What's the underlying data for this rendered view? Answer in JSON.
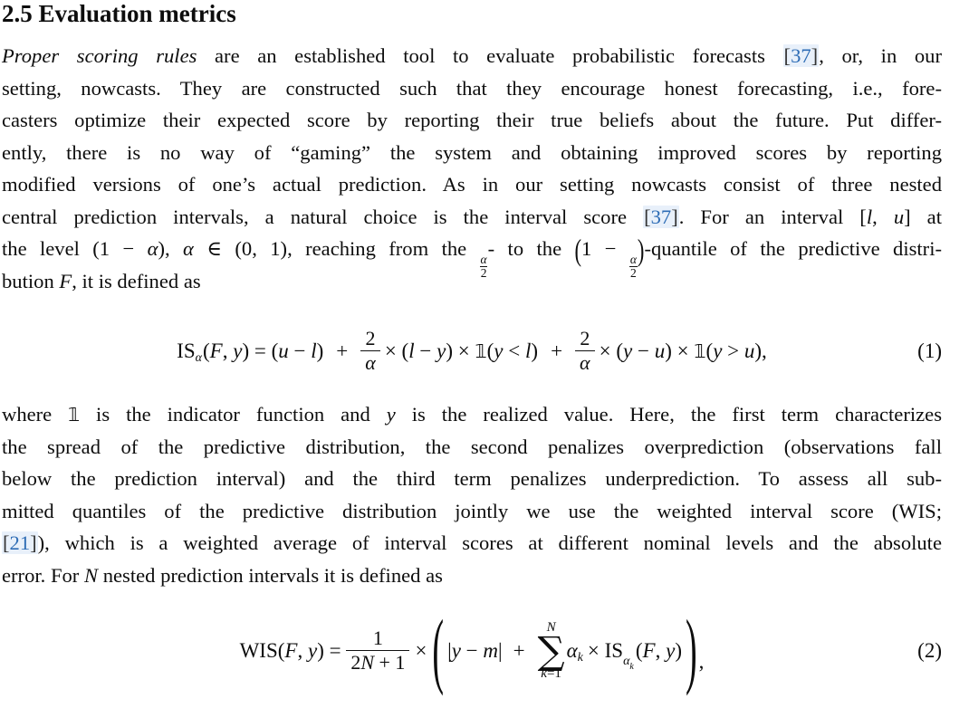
{
  "colors": {
    "body_text": "#0d0d0d",
    "citation_text": "#2d6cb5",
    "citation_background": "#e8f0fa"
  },
  "heading": {
    "title": "2.5 Evaluation metrics"
  },
  "paragraph_1": {
    "lines": [
      [
        {
          "i": "Proper scoring rules"
        },
        " are an established tool to evaluate probabilistic forecasts ",
        {
          "c": "[37]"
        },
        ", or, in our"
      ],
      [
        "setting, nowcasts. They are constructed such that they encourage honest forecasting, i.e., fore-"
      ],
      [
        "casters optimize their expected score by reporting their true beliefs about the future. Put differ-"
      ],
      [
        "ently, there is no way of “gaming” the system and obtaining improved scores by reporting"
      ],
      [
        "modified versions of one’s actual prediction. As in our setting nowcasts consist of three nested"
      ],
      [
        "central prediction intervals, a natural choice is the interval score ",
        {
          "c": "[37]"
        },
        ". For an interval [",
        {
          "i": "l"
        },
        ", ",
        {
          "i": "u"
        },
        "] at"
      ],
      [
        "the level (1 − ",
        {
          "i": "α"
        },
        "), ",
        {
          "i": "α"
        },
        " ∈ (0, 1), reaching from the ",
        {
          "f": [
            "α",
            "2"
          ]
        },
        "- to the ",
        {
          "tp": "("
        },
        "1 − ",
        {
          "f": [
            "α",
            "2"
          ]
        },
        {
          "tp": ")"
        },
        "-quantile of the predictive distri-"
      ],
      [
        "bution ",
        {
          "i": "F"
        },
        ", it is defined as"
      ]
    ]
  },
  "equation_1": {
    "number": "(1)",
    "tokens": [
      {
        "t": "IS"
      },
      {
        "sub": "α"
      },
      {
        "t": "("
      },
      {
        "v": "F"
      },
      {
        "t": ", "
      },
      {
        "v": "y"
      },
      {
        "t": ") = ("
      },
      {
        "v": "u"
      },
      {
        "t": " − "
      },
      {
        "v": "l"
      },
      {
        "t": ")"
      },
      {
        "sp": 14
      },
      {
        "t": "+"
      },
      {
        "sp": 14
      },
      {
        "f": [
          "2",
          "α"
        ]
      },
      {
        "sp": 5
      },
      {
        "t": "× ("
      },
      {
        "v": "l"
      },
      {
        "t": " − "
      },
      {
        "v": "y"
      },
      {
        "t": ") × "
      },
      {
        "dbl": "𝟙"
      },
      {
        "t": "("
      },
      {
        "v": "y"
      },
      {
        "t": " < "
      },
      {
        "v": "l"
      },
      {
        "t": ")"
      },
      {
        "sp": 14
      },
      {
        "t": "+"
      },
      {
        "sp": 14
      },
      {
        "f": [
          "2",
          "α"
        ]
      },
      {
        "sp": 5
      },
      {
        "t": "× ("
      },
      {
        "v": "y"
      },
      {
        "t": " − "
      },
      {
        "v": "u"
      },
      {
        "t": ") × "
      },
      {
        "dbl": "𝟙"
      },
      {
        "t": "("
      },
      {
        "v": "y"
      },
      {
        "t": " > "
      },
      {
        "v": "u"
      },
      {
        "t": "),"
      }
    ]
  },
  "paragraph_2": {
    "lines": [
      [
        "where ",
        {
          "dbl": "𝟙"
        },
        " is the indicator function and ",
        {
          "i": "y"
        },
        " is the realized value. Here, the first term characterizes"
      ],
      [
        "the spread of the predictive distribution, the second penalizes overprediction (observations fall"
      ],
      [
        "below the prediction interval) and the third term penalizes underprediction. To assess all sub-"
      ],
      [
        "mitted quantiles of the predictive distribution jointly we use the weighted interval score (WIS;"
      ],
      [
        {
          "c": "[21]"
        },
        "), which is a weighted average of interval scores at different nominal levels and the absolute"
      ],
      [
        "error. For ",
        {
          "i": "N"
        },
        " nested prediction intervals it is defined as"
      ]
    ]
  },
  "equation_2": {
    "number": "(2)",
    "tokens": [
      {
        "t": "WIS("
      },
      {
        "v": "F"
      },
      {
        "t": ", "
      },
      {
        "v": "y"
      },
      {
        "t": ") = "
      },
      {
        "f": [
          "1",
          "2N + 1"
        ]
      },
      {
        "sp": 6
      },
      {
        "t": "×"
      },
      {
        "sp": 4
      },
      {
        "bp": "("
      },
      {
        "sp": 2
      },
      {
        "t": "|"
      },
      {
        "v": "y"
      },
      {
        "t": " − "
      },
      {
        "v": "m"
      },
      {
        "t": "|"
      },
      {
        "sp": 12
      },
      {
        "t": "+"
      },
      {
        "sp": 12
      },
      {
        "sum": {
          "top": "N",
          "bot": "k=1"
        }
      },
      {
        "v": "α"
      },
      {
        "sub": "k"
      },
      {
        "sp": 4
      },
      {
        "t": "× IS"
      },
      {
        "sub2": [
          "α",
          "k"
        ]
      },
      {
        "t": "("
      },
      {
        "v": "F"
      },
      {
        "t": ", "
      },
      {
        "v": "y"
      },
      {
        "t": ")"
      },
      {
        "sp": 2
      },
      {
        "bp": ")"
      },
      {
        "lo": ","
      }
    ]
  }
}
